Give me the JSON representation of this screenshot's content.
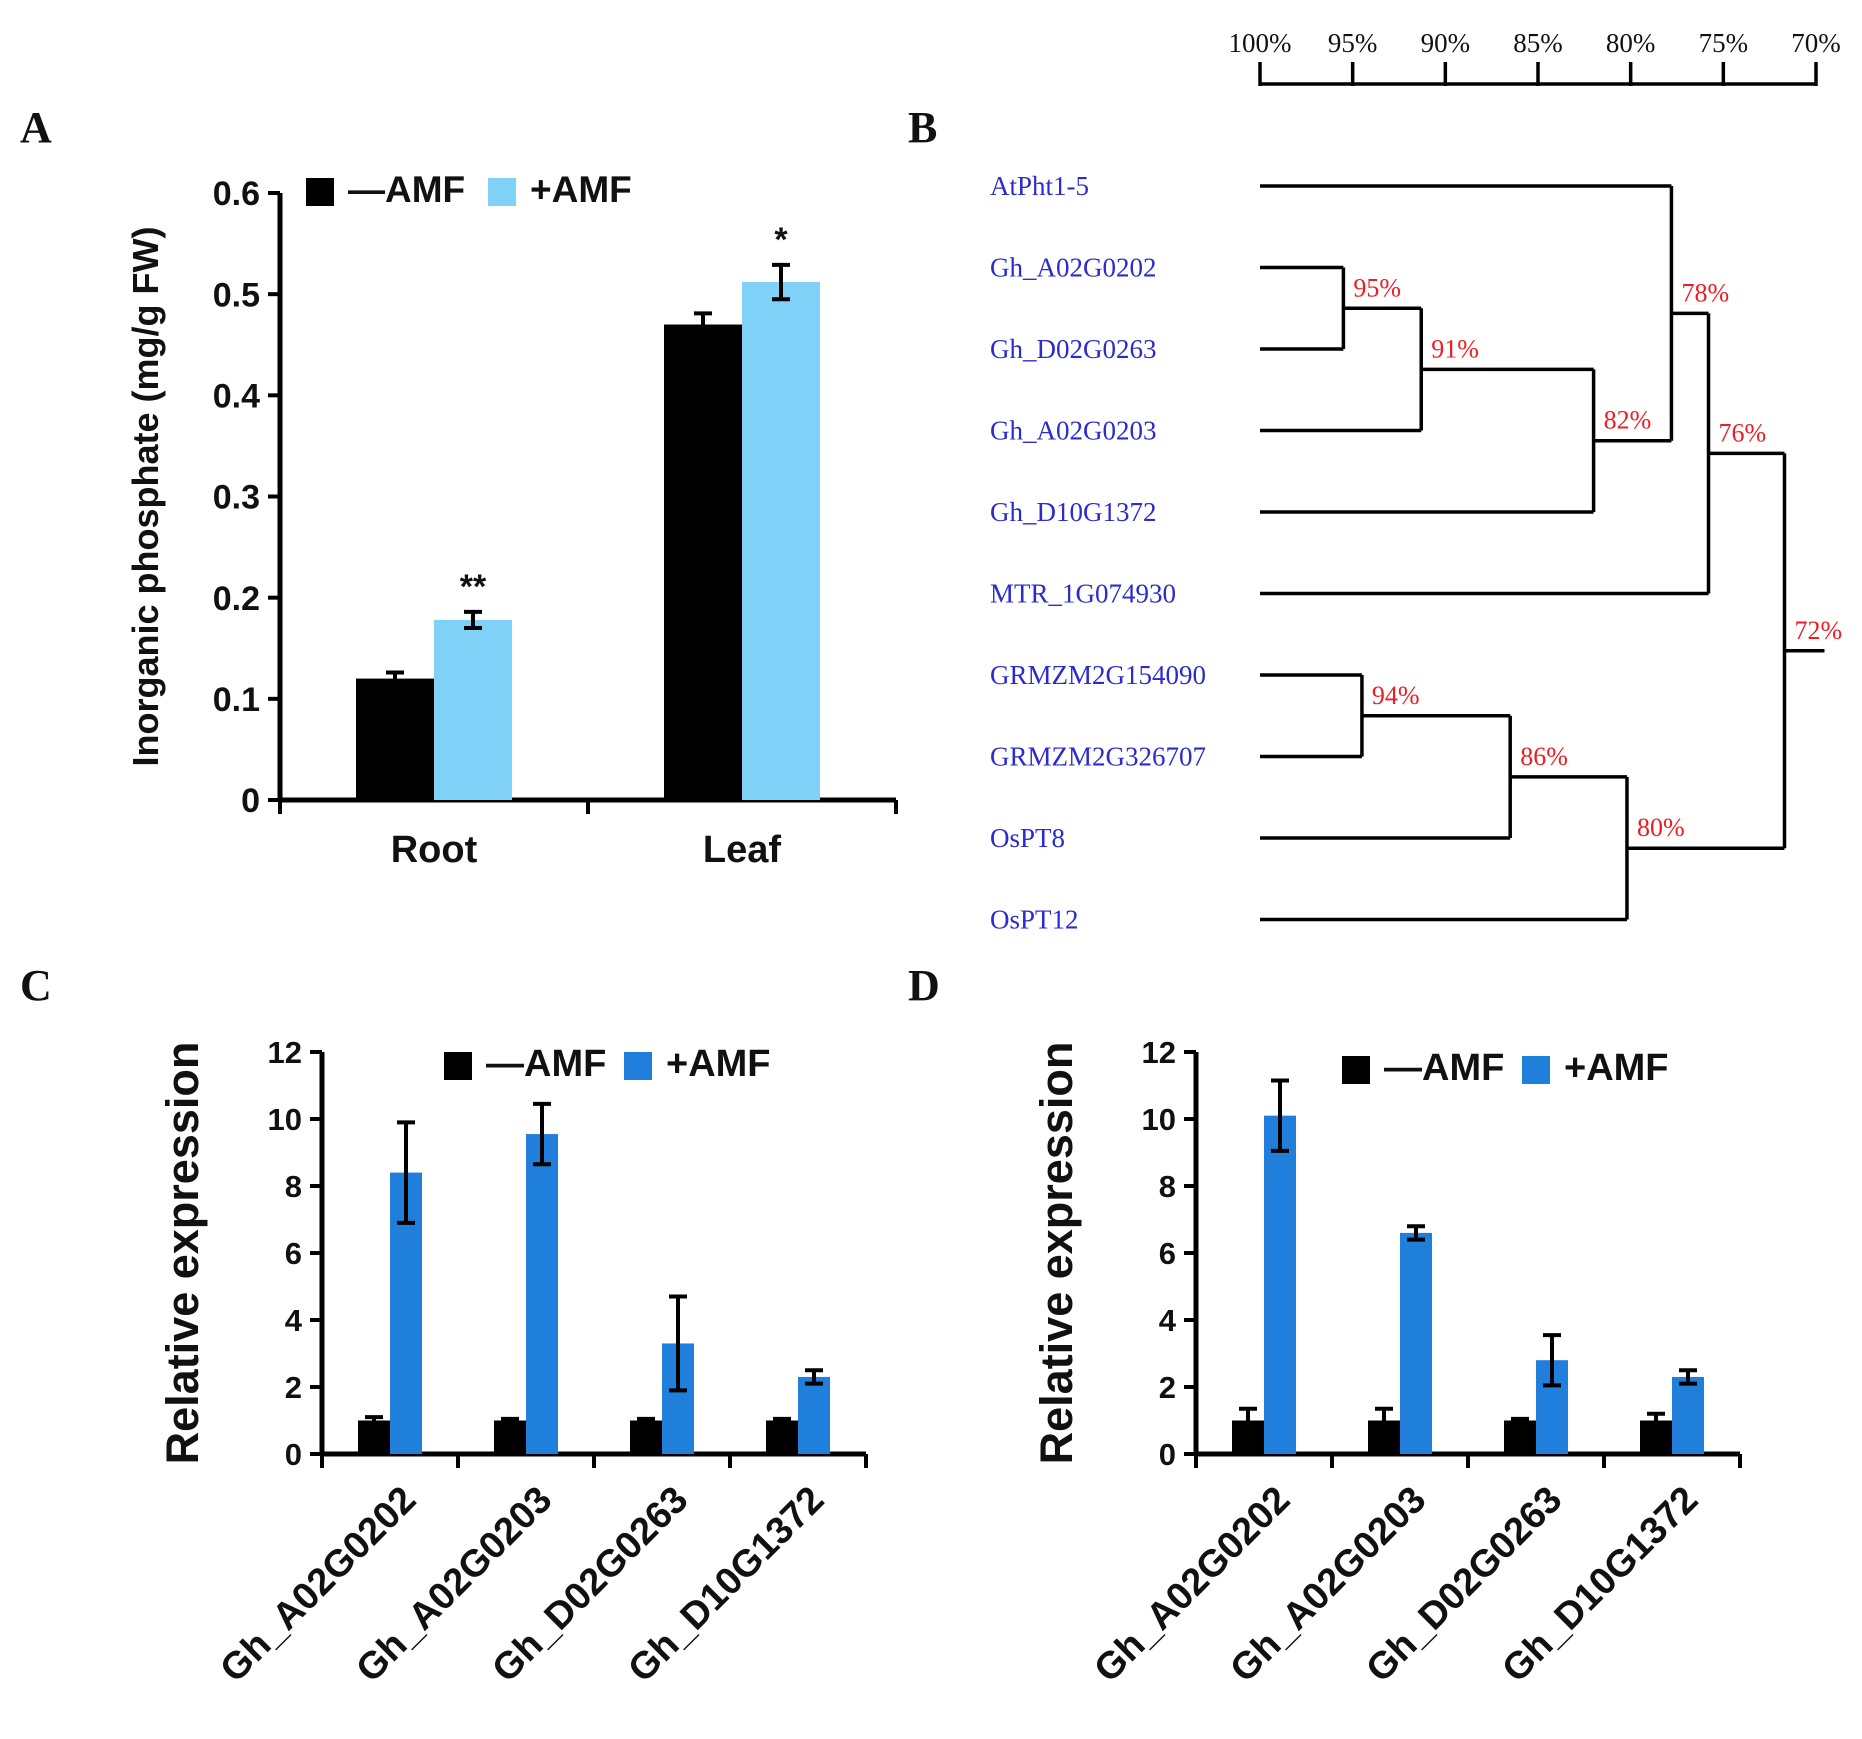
{
  "panel_labels": {
    "A": "A",
    "B": "B",
    "C": "C",
    "D": "D"
  },
  "colors": {
    "neg": "#000000",
    "pos_a": "#7fd1f8",
    "pos_cd": "#1f7fdb",
    "leaf_text": "#2b2bcf",
    "node_text": "#ee1c24"
  },
  "chart_data": [
    {
      "id": "A",
      "type": "bar",
      "title": "",
      "xlabel": "",
      "ylabel": "Inorganic phosphate (mg/g FW)",
      "categories": [
        "Root",
        "Leaf"
      ],
      "series": [
        {
          "name": "—AMF",
          "values": [
            0.12,
            0.47
          ],
          "errors": [
            0.006,
            0.011
          ]
        },
        {
          "name": "+AMF",
          "values": [
            0.178,
            0.512
          ],
          "errors": [
            0.008,
            0.017
          ]
        }
      ],
      "significance": [
        {
          "category": "Root",
          "series": "+AMF",
          "label": "**"
        },
        {
          "category": "Leaf",
          "series": "+AMF",
          "label": "*"
        }
      ],
      "ylim": [
        0,
        0.6
      ],
      "yticks": [
        "0",
        "0.1",
        "0.2",
        "0.3",
        "0.4",
        "0.5",
        "0.6"
      ],
      "legend": "top-left",
      "grid": false
    },
    {
      "id": "C",
      "type": "bar",
      "title": "",
      "xlabel": "",
      "ylabel": "Relative expression",
      "categories": [
        "Gh_A02G0202",
        "Gh_A02G0203",
        "Gh_D02G0263",
        "Gh_D10G1372"
      ],
      "series": [
        {
          "name": "—AMF",
          "values": [
            1.0,
            1.0,
            1.0,
            1.0
          ],
          "errors": [
            0.1,
            0.05,
            0.05,
            0.05
          ]
        },
        {
          "name": "+AMF",
          "values": [
            8.4,
            9.55,
            3.3,
            2.3
          ],
          "errors": [
            1.5,
            0.9,
            1.4,
            0.2
          ]
        }
      ],
      "ylim": [
        0,
        12
      ],
      "yticks": [
        "0",
        "2",
        "4",
        "6",
        "8",
        "10",
        "12"
      ],
      "legend": "top-right",
      "grid": false
    },
    {
      "id": "D",
      "type": "bar",
      "title": "",
      "xlabel": "",
      "ylabel": "Relative expression",
      "categories": [
        "Gh_A02G0202",
        "Gh_A02G0203",
        "Gh_D02G0263",
        "Gh_D10G1372"
      ],
      "series": [
        {
          "name": "—AMF",
          "values": [
            1.0,
            1.0,
            1.0,
            1.0
          ],
          "errors": [
            0.35,
            0.35,
            0.05,
            0.2
          ]
        },
        {
          "name": "+AMF",
          "values": [
            10.1,
            6.6,
            2.8,
            2.3
          ],
          "errors": [
            1.05,
            0.2,
            0.75,
            0.2
          ]
        }
      ],
      "ylim": [
        0,
        12
      ],
      "yticks": [
        "0",
        "2",
        "4",
        "6",
        "8",
        "10",
        "12"
      ],
      "legend": "top-right",
      "grid": false
    }
  ],
  "dendrogram": {
    "id": "B",
    "scale_labels": [
      "100%",
      "95%",
      "90%",
      "85%",
      "80%",
      "75%",
      "70%"
    ],
    "leaves": [
      "AtPht1-5",
      "Gh_A02G0202",
      "Gh_D02G0263",
      "Gh_A02G0203",
      "Gh_D10G1372",
      "MTR_1G074930",
      "GRMZM2G154090",
      "GRMZM2G326707",
      "OsPT8",
      "OsPT12"
    ],
    "nodes": [
      {
        "id": "n95",
        "label": "95%",
        "similarity": 95.5,
        "children": [
          "Gh_A02G0202",
          "Gh_D02G0263"
        ]
      },
      {
        "id": "n91",
        "label": "91%",
        "similarity": 91.3,
        "children": [
          "n95",
          "Gh_A02G0203"
        ]
      },
      {
        "id": "n82",
        "label": "82%",
        "similarity": 82.0,
        "children": [
          "n91",
          "Gh_D10G1372"
        ]
      },
      {
        "id": "n78",
        "label": "78%",
        "similarity": 77.8,
        "children": [
          "AtPht1-5",
          "n82"
        ]
      },
      {
        "id": "n76",
        "label": "76%",
        "similarity": 75.8,
        "children": [
          "n78",
          "MTR_1G074930"
        ]
      },
      {
        "id": "n94",
        "label": "94%",
        "similarity": 94.5,
        "children": [
          "GRMZM2G154090",
          "GRMZM2G326707"
        ]
      },
      {
        "id": "n86",
        "label": "86%",
        "similarity": 86.5,
        "children": [
          "n94",
          "OsPT8"
        ]
      },
      {
        "id": "n80",
        "label": "80%",
        "similarity": 80.2,
        "children": [
          "n86",
          "OsPT12"
        ]
      },
      {
        "id": "n72",
        "label": "72%",
        "similarity": 71.7,
        "children": [
          "n76",
          "n80"
        ]
      }
    ]
  }
}
